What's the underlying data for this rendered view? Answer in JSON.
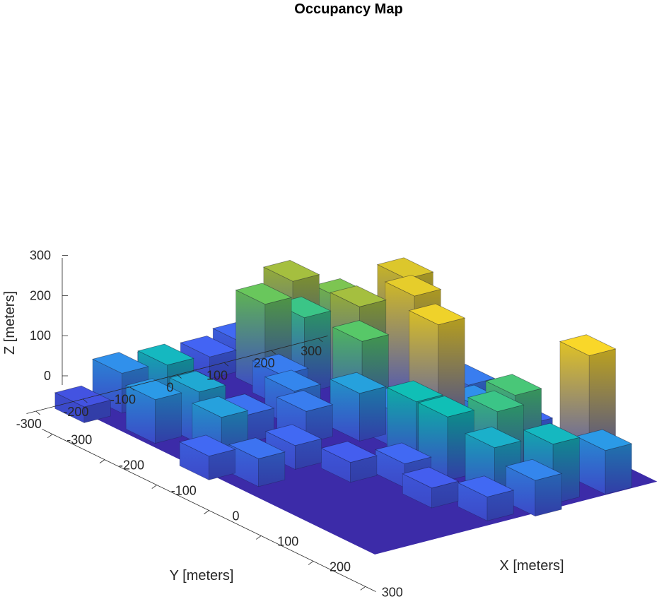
{
  "chart_data": {
    "type": "3d-voxel-occupancy-map",
    "title": "Occupancy Map",
    "xlabel": "X [meters]",
    "ylabel": "Y [meters]",
    "zlabel": "Z [meters]",
    "xlim": [
      -320,
      320
    ],
    "ylim": [
      -320,
      320
    ],
    "zlim": [
      0,
      320
    ],
    "x_ticks": [
      -300,
      -200,
      -100,
      0,
      100,
      200,
      300
    ],
    "y_ticks": [
      -300,
      -200,
      -100,
      0,
      100,
      200,
      300
    ],
    "z_ticks": [
      0,
      100,
      200,
      300
    ],
    "grid": false,
    "colormap": "parula",
    "colormap_colors": [
      "#3e26a8",
      "#4462f4",
      "#2d97ea",
      "#10bfb6",
      "#5cc963",
      "#c6bb2e",
      "#f9d729"
    ],
    "buildings": [
      {
        "x": -120,
        "y": 230,
        "h": 290
      },
      {
        "x": -60,
        "y": 180,
        "h": 300
      },
      {
        "x": 40,
        "y": 120,
        "h": 310
      },
      {
        "x": 230,
        "y": 230,
        "h": 320
      },
      {
        "x": 160,
        "y": 150,
        "h": 200
      },
      {
        "x": -120,
        "y": 130,
        "h": 250
      },
      {
        "x": -170,
        "y": 150,
        "h": 230
      },
      {
        "x": -70,
        "y": 80,
        "h": 210
      },
      {
        "x": -30,
        "y": 30,
        "h": 120
      },
      {
        "x": 70,
        "y": 40,
        "h": 160
      },
      {
        "x": 130,
        "y": 40,
        "h": 160
      },
      {
        "x": 220,
        "y": 40,
        "h": 140
      },
      {
        "x": 180,
        "y": 90,
        "h": 190
      },
      {
        "x": 260,
        "y": 120,
        "h": 150
      },
      {
        "x": -220,
        "y": 40,
        "h": 220
      },
      {
        "x": -230,
        "y": 110,
        "h": 250
      },
      {
        "x": -190,
        "y": 90,
        "h": 190
      },
      {
        "x": -110,
        "y": -20,
        "h": 90
      },
      {
        "x": -60,
        "y": -50,
        "h": 80
      },
      {
        "x": -200,
        "y": -190,
        "h": 150
      },
      {
        "x": -130,
        "y": -200,
        "h": 130
      },
      {
        "x": -60,
        "y": -230,
        "h": 120
      },
      {
        "x": -160,
        "y": -260,
        "h": 110
      },
      {
        "x": -260,
        "y": -220,
        "h": 100
      },
      {
        "x": -240,
        "y": -120,
        "h": 60
      },
      {
        "x": -300,
        "y": -80,
        "h": 50
      },
      {
        "x": -290,
        "y": 0,
        "h": 55
      },
      {
        "x": -300,
        "y": 80,
        "h": 60
      },
      {
        "x": -100,
        "y": -130,
        "h": 70
      },
      {
        "x": 0,
        "y": -140,
        "h": 60
      },
      {
        "x": 70,
        "y": -100,
        "h": 50
      },
      {
        "x": 120,
        "y": -40,
        "h": 60
      },
      {
        "x": 190,
        "y": -60,
        "h": 50
      },
      {
        "x": 260,
        "y": -20,
        "h": 60
      },
      {
        "x": 270,
        "y": 220,
        "h": 110
      },
      {
        "x": 100,
        "y": 240,
        "h": 60
      },
      {
        "x": -20,
        "y": 250,
        "h": 80
      },
      {
        "x": 20,
        "y": -240,
        "h": 70
      },
      {
        "x": -260,
        "y": -300,
        "h": 40
      },
      {
        "x": 0,
        "y": 60,
        "h": 90
      },
      {
        "x": -170,
        "y": 20,
        "h": 80
      },
      {
        "x": 280,
        "y": 60,
        "h": 90
      },
      {
        "x": 60,
        "y": 180,
        "h": 100
      },
      {
        "x": -30,
        "y": -290,
        "h": 60
      }
    ]
  }
}
